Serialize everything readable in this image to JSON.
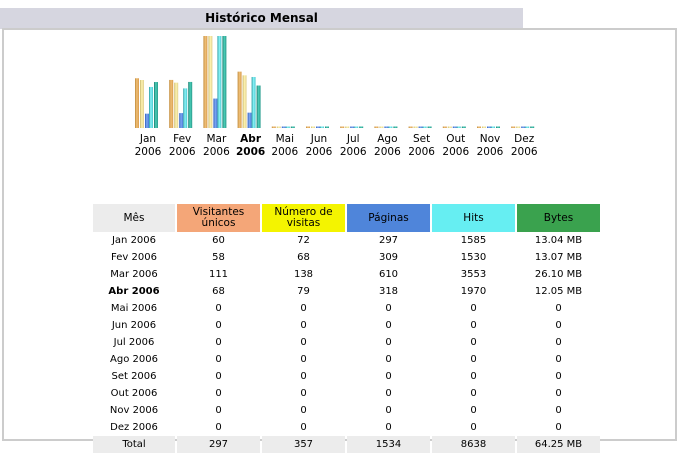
{
  "title": "Histórico Mensal",
  "colors": {
    "visitors": "#f4a678",
    "visits": "#f4f400",
    "pages": "#4f85da",
    "hits": "#66eef2",
    "bytes": "#3aa24e",
    "header_bg": "#ececec",
    "title_bg": "#d6d6e0"
  },
  "chart_data": {
    "type": "bar",
    "categories": [
      {
        "month": "Jan",
        "year": "2006"
      },
      {
        "month": "Fev",
        "year": "2006"
      },
      {
        "month": "Mar",
        "year": "2006"
      },
      {
        "month": "Abr",
        "year": "2006",
        "current": true
      },
      {
        "month": "Mai",
        "year": "2006"
      },
      {
        "month": "Jun",
        "year": "2006"
      },
      {
        "month": "Jul",
        "year": "2006"
      },
      {
        "month": "Ago",
        "year": "2006"
      },
      {
        "month": "Set",
        "year": "2006"
      },
      {
        "month": "Out",
        "year": "2006"
      },
      {
        "month": "Nov",
        "year": "2006"
      },
      {
        "month": "Dez",
        "year": "2006"
      }
    ],
    "series": [
      {
        "key": "visitors",
        "values": [
          60,
          58,
          111,
          68,
          0,
          0,
          0,
          0,
          0,
          0,
          0,
          0
        ]
      },
      {
        "key": "visits",
        "values": [
          72,
          68,
          138,
          79,
          0,
          0,
          0,
          0,
          0,
          0,
          0,
          0
        ]
      },
      {
        "key": "pages",
        "values": [
          297,
          309,
          610,
          318,
          0,
          0,
          0,
          0,
          0,
          0,
          0,
          0
        ]
      },
      {
        "key": "hits",
        "values": [
          1585,
          1530,
          3553,
          1970,
          0,
          0,
          0,
          0,
          0,
          0,
          0,
          0
        ]
      },
      {
        "key": "bytes",
        "values": [
          13.04,
          13.07,
          26.1,
          12.05,
          0,
          0,
          0,
          0,
          0,
          0,
          0,
          0
        ]
      }
    ]
  },
  "table": {
    "headers": {
      "month": "Mês",
      "visitors_line1": "Visitantes",
      "visitors_line2": "únicos",
      "visits_line1": "Número de",
      "visits_line2": "visitas",
      "pages": "Páginas",
      "hits": "Hits",
      "bytes": "Bytes"
    },
    "rows": [
      {
        "month": "Jan 2006",
        "visitors": "60",
        "visits": "72",
        "pages": "297",
        "hits": "1585",
        "bytes": "13.04 MB"
      },
      {
        "month": "Fev 2006",
        "visitors": "58",
        "visits": "68",
        "pages": "309",
        "hits": "1530",
        "bytes": "13.07 MB"
      },
      {
        "month": "Mar 2006",
        "visitors": "111",
        "visits": "138",
        "pages": "610",
        "hits": "3553",
        "bytes": "26.10 MB"
      },
      {
        "month": "Abr 2006",
        "visitors": "68",
        "visits": "79",
        "pages": "318",
        "hits": "1970",
        "bytes": "12.05 MB",
        "current": true
      },
      {
        "month": "Mai 2006",
        "visitors": "0",
        "visits": "0",
        "pages": "0",
        "hits": "0",
        "bytes": "0"
      },
      {
        "month": "Jun 2006",
        "visitors": "0",
        "visits": "0",
        "pages": "0",
        "hits": "0",
        "bytes": "0"
      },
      {
        "month": "Jul 2006",
        "visitors": "0",
        "visits": "0",
        "pages": "0",
        "hits": "0",
        "bytes": "0"
      },
      {
        "month": "Ago 2006",
        "visitors": "0",
        "visits": "0",
        "pages": "0",
        "hits": "0",
        "bytes": "0"
      },
      {
        "month": "Set 2006",
        "visitors": "0",
        "visits": "0",
        "pages": "0",
        "hits": "0",
        "bytes": "0"
      },
      {
        "month": "Out 2006",
        "visitors": "0",
        "visits": "0",
        "pages": "0",
        "hits": "0",
        "bytes": "0"
      },
      {
        "month": "Nov 2006",
        "visitors": "0",
        "visits": "0",
        "pages": "0",
        "hits": "0",
        "bytes": "0"
      },
      {
        "month": "Dez 2006",
        "visitors": "0",
        "visits": "0",
        "pages": "0",
        "hits": "0",
        "bytes": "0"
      }
    ],
    "total": {
      "month": "Total",
      "visitors": "297",
      "visits": "357",
      "pages": "1534",
      "hits": "8638",
      "bytes": "64.25 MB"
    }
  }
}
